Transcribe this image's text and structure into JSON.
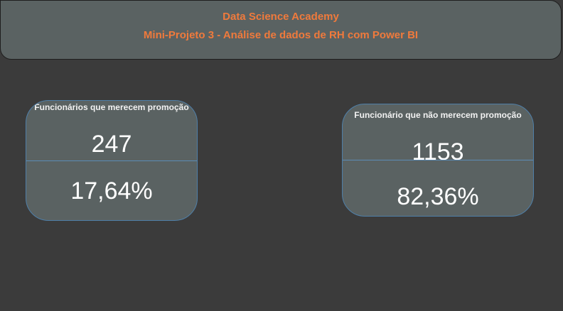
{
  "header": {
    "line1": "Data Science Academy",
    "line2": "Mini-Projeto 3 - Análise de dados de RH com Power BI"
  },
  "cards": [
    {
      "title": "Funcionários que merecem promoção",
      "count": "247",
      "percent": "17,64%"
    },
    {
      "title": "Funcionário que não merecem promoção",
      "count": "1153",
      "percent": "82,36%"
    }
  ],
  "colors": {
    "background": "#3b3b3b",
    "panel": "#5a6262",
    "accent_orange": "#f07a3c",
    "divider_blue": "#5c8cb5"
  }
}
